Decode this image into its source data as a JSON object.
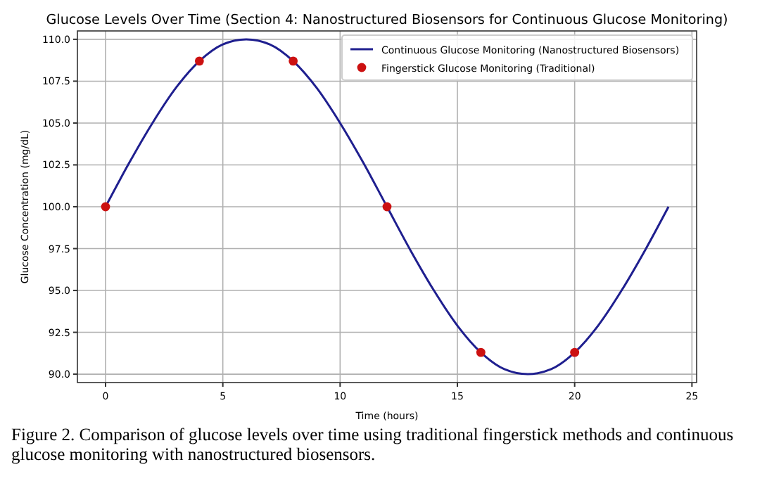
{
  "chart_data": {
    "type": "line",
    "title": "Glucose Levels Over Time (Section 4: Nanostructured Biosensors for Continuous Glucose Monitoring)",
    "xlabel": "Time (hours)",
    "ylabel": "Glucose Concentration (mg/dL)",
    "xlim": [
      -1.2,
      25.2
    ],
    "xticks": [
      0,
      5,
      10,
      15,
      20,
      25
    ],
    "ylim": [
      89.5,
      110.5
    ],
    "yticks": [
      {
        "value": 90,
        "label": "90.0"
      },
      {
        "value": 92.5,
        "label": "92.5"
      },
      {
        "value": 95,
        "label": "95.0"
      },
      {
        "value": 97.5,
        "label": "97.5"
      },
      {
        "value": 100,
        "label": "100.0"
      },
      {
        "value": 102.5,
        "label": "102.5"
      },
      {
        "value": 105,
        "label": "105.0"
      },
      {
        "value": 107.5,
        "label": "107.5"
      },
      {
        "value": 110,
        "label": "110.0"
      }
    ],
    "grid": true,
    "legend": "top right",
    "series": [
      {
        "name": "Continuous Glucose Monitoring (Nanostructured Biosensors)",
        "color": "#1f1f8f",
        "x": [
          0,
          1,
          2,
          3,
          4,
          5,
          6,
          7,
          8,
          9,
          10,
          11,
          12,
          13,
          14,
          15,
          16,
          17,
          18,
          19,
          20,
          21,
          22,
          23,
          24
        ],
        "values": [
          100,
          102.6,
          105,
          107.1,
          108.7,
          109.7,
          110,
          109.7,
          108.7,
          107.1,
          105,
          102.6,
          100,
          97.4,
          95,
          92.9,
          91.3,
          90.3,
          90,
          90.3,
          91.3,
          92.9,
          95,
          97.4,
          100
        ]
      },
      {
        "name": "Fingerstick Glucose Monitoring (Traditional)",
        "type": "scatter",
        "marker": "circle",
        "color": "#cc1111",
        "x": [
          0,
          4,
          8,
          12,
          16,
          20
        ],
        "values": [
          100,
          108.7,
          108.7,
          100,
          91.3,
          91.3
        ]
      }
    ],
    "annotations": [
      "Figure 2. Comparison of glucose levels over time using traditional fingerstick methods and continuous glucose monitoring with nanostructured biosensors."
    ]
  }
}
